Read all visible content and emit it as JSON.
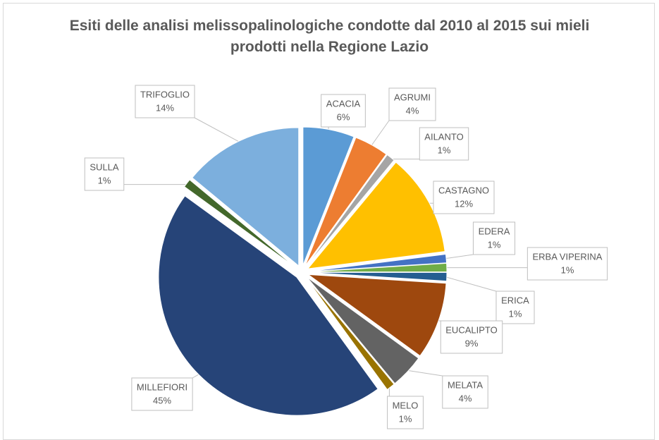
{
  "chart_data": {
    "type": "pie",
    "title": "Esiti delle analisi melissopalinologiche condotte dal 2010 al 2015 sui mieli prodotti nella Regione Lazio",
    "categories": [
      "ACACIA",
      "AGRUMI",
      "AILANTO",
      "CASTAGNO",
      "EDERA",
      "ERBA VIPERINA",
      "ERICA",
      "EUCALIPTO",
      "MELATA",
      "MELO",
      "MILLEFIORI",
      "SULLA",
      "TRIFOGLIO"
    ],
    "values": [
      6,
      4,
      1,
      12,
      1,
      1,
      1,
      9,
      4,
      1,
      45,
      1,
      14
    ],
    "value_labels": [
      "6%",
      "4%",
      "1%",
      "12%",
      "1%",
      "1%",
      "1%",
      "9%",
      "4%",
      "1%",
      "45%",
      "1%",
      "14%"
    ],
    "colors": [
      "#5b9bd5",
      "#ed7d31",
      "#a5a5a5",
      "#ffc000",
      "#4472c4",
      "#70ad47",
      "#255e91",
      "#9e480e",
      "#636363",
      "#997300",
      "#264478",
      "#43682b",
      "#7cafdd"
    ]
  }
}
